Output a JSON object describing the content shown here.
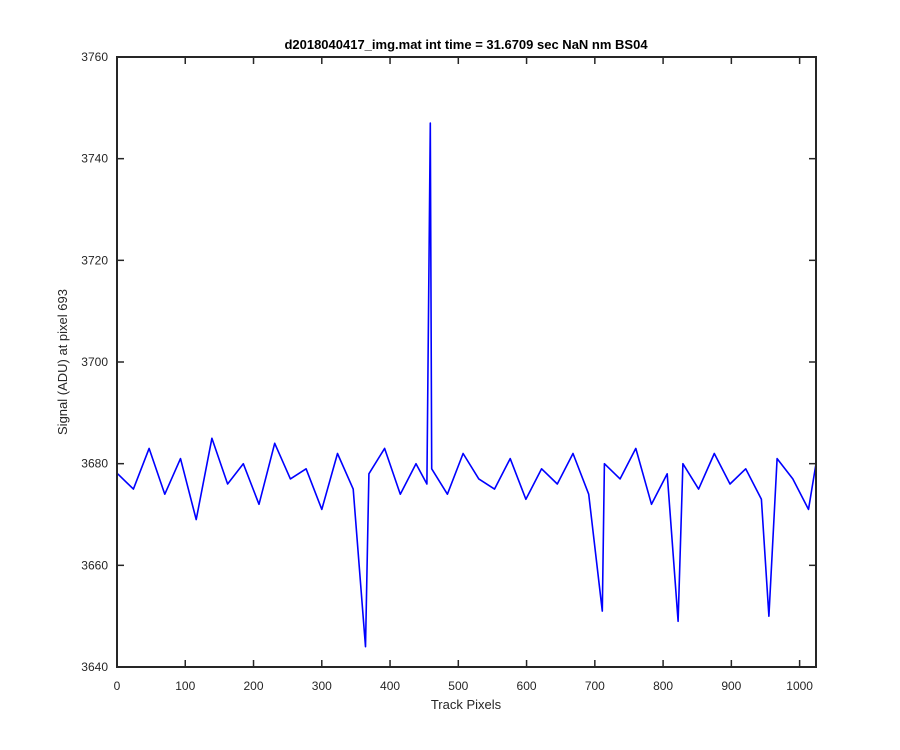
{
  "chart_data": {
    "type": "line",
    "title": "d2018040417_img.mat int time = 31.6709 sec  NaN nm BS04",
    "xlabel": "Track Pixels",
    "ylabel": "Signal (ADU) at pixel 693",
    "xlim": [
      0,
      1024
    ],
    "ylim": [
      3640,
      3760
    ],
    "xticks": [
      0,
      100,
      200,
      300,
      400,
      500,
      600,
      700,
      800,
      900,
      1000
    ],
    "yticks": [
      3640,
      3660,
      3680,
      3700,
      3720,
      3740,
      3760
    ],
    "grid": false,
    "legend": "none",
    "series_color": "#0000ff",
    "series": [
      {
        "x": [
          1,
          24,
          47,
          70,
          93,
          116,
          139,
          162,
          185,
          208,
          231,
          254,
          277,
          300,
          323,
          346,
          364,
          369,
          392,
          415,
          438,
          454,
          459,
          461,
          484,
          507,
          530,
          553,
          576,
          599,
          622,
          645,
          668,
          691,
          711,
          714,
          737,
          760,
          783,
          806,
          822,
          829,
          852,
          875,
          898,
          921,
          944,
          955,
          967,
          990,
          1013,
          1024
        ],
        "y": [
          3678,
          3675,
          3683,
          3674,
          3681,
          3669,
          3685,
          3676,
          3680,
          3672,
          3684,
          3677,
          3679,
          3671,
          3682,
          3675,
          3644,
          3678,
          3683,
          3674,
          3680,
          3676,
          3747,
          3679,
          3674,
          3682,
          3677,
          3675,
          3681,
          3673,
          3679,
          3676,
          3682,
          3674,
          3651,
          3680,
          3677,
          3683,
          3672,
          3678,
          3649,
          3680,
          3675,
          3682,
          3676,
          3679,
          3673,
          3650,
          3681,
          3677,
          3671,
          3680
        ]
      }
    ]
  }
}
